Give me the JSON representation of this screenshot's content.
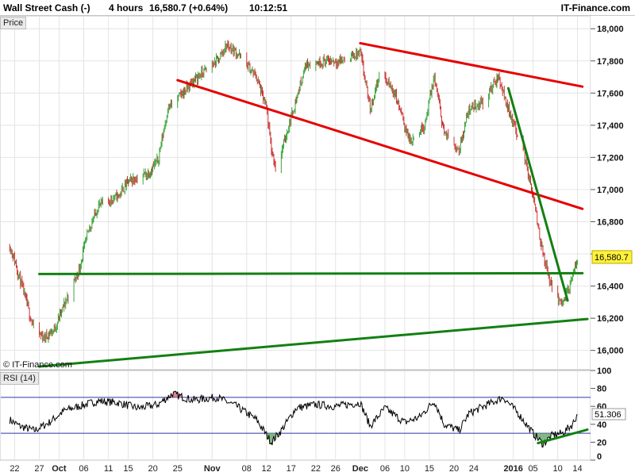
{
  "header": {
    "symbol": "Wall Street Cash (-)",
    "period": "4 hours",
    "price_change": "16,580.7 (+0.64%)",
    "time": "10:12:51",
    "site": "IT-Finance.com"
  },
  "price_panel": {
    "label": "Price",
    "copyright": "© IT-Finance.com"
  },
  "rsi_panel": {
    "label": "RSI (14)"
  },
  "colors": {
    "up": "#3aa43a",
    "down": "#cc3333",
    "resistance": "#e60000",
    "support": "#128012",
    "rsi_line": "#000000",
    "level_line": "#3333aa",
    "current_price_bg": "#fff23a"
  },
  "chart_data": [
    {
      "type": "candlestick",
      "title": "Wall Street Cash (-)",
      "interval": "4 hours",
      "ylim": [
        15880,
        18080
      ],
      "yticks": [
        16000,
        16200,
        16400,
        16600,
        16800,
        17000,
        17200,
        17400,
        17600,
        17800,
        18000
      ],
      "ytick_labels": [
        "16,000",
        "16,200",
        "16,400",
        "16,600",
        "16,800",
        "17,000",
        "17,200",
        "17,400",
        "17,600",
        "17,800",
        "18,000"
      ],
      "current_price": 16580.7,
      "current_price_label": "16,580.7",
      "price_path_anchors": [
        {
          "date": "2015-09-21",
          "close": 16650
        },
        {
          "date": "2015-09-22",
          "close": 16560
        },
        {
          "date": "2015-09-24",
          "close": 16340
        },
        {
          "date": "2015-09-26",
          "close": 16120
        },
        {
          "date": "2015-09-28",
          "close": 16080
        },
        {
          "date": "2015-09-30",
          "close": 16130
        },
        {
          "date": "2015-10-02",
          "close": 16280
        },
        {
          "date": "2015-10-05",
          "close": 16500
        },
        {
          "date": "2015-10-07",
          "close": 16750
        },
        {
          "date": "2015-10-09",
          "close": 16900
        },
        {
          "date": "2015-10-13",
          "close": 16960
        },
        {
          "date": "2015-10-15",
          "close": 17050
        },
        {
          "date": "2015-10-19",
          "close": 17100
        },
        {
          "date": "2015-10-21",
          "close": 17180
        },
        {
          "date": "2015-10-23",
          "close": 17500
        },
        {
          "date": "2015-10-26",
          "close": 17600
        },
        {
          "date": "2015-10-29",
          "close": 17700
        },
        {
          "date": "2015-11-02",
          "close": 17800
        },
        {
          "date": "2015-11-04",
          "close": 17900
        },
        {
          "date": "2015-11-06",
          "close": 17850
        },
        {
          "date": "2015-11-10",
          "close": 17700
        },
        {
          "date": "2015-11-12",
          "close": 17500
        },
        {
          "date": "2015-11-13",
          "close": 17250
        },
        {
          "date": "2015-11-14",
          "close": 17120
        },
        {
          "date": "2015-11-17",
          "close": 17450
        },
        {
          "date": "2015-11-20",
          "close": 17780
        },
        {
          "date": "2015-11-24",
          "close": 17800
        },
        {
          "date": "2015-11-27",
          "close": 17800
        },
        {
          "date": "2015-12-01",
          "close": 17850
        },
        {
          "date": "2015-12-03",
          "close": 17500
        },
        {
          "date": "2015-12-05",
          "close": 17730
        },
        {
          "date": "2015-12-08",
          "close": 17600
        },
        {
          "date": "2015-12-11",
          "close": 17300
        },
        {
          "date": "2015-12-14",
          "close": 17400
        },
        {
          "date": "2015-12-16",
          "close": 17700
        },
        {
          "date": "2015-12-18",
          "close": 17350
        },
        {
          "date": "2015-12-21",
          "close": 17250
        },
        {
          "date": "2015-12-23",
          "close": 17500
        },
        {
          "date": "2015-12-26",
          "close": 17550
        },
        {
          "date": "2015-12-29",
          "close": 17700
        },
        {
          "date": "2015-12-31",
          "close": 17500
        },
        {
          "date": "2016-01-03",
          "close": 17250
        },
        {
          "date": "2016-01-05",
          "close": 16950
        },
        {
          "date": "2016-01-07",
          "close": 16600
        },
        {
          "date": "2016-01-09",
          "close": 16350
        },
        {
          "date": "2016-01-11",
          "close": 16300
        },
        {
          "date": "2016-01-13",
          "close": 16450
        },
        {
          "date": "2016-01-14",
          "close": 16580.7
        }
      ],
      "trendlines": [
        {
          "name": "upper channel",
          "color": "red",
          "points": [
            [
              "2015-12-01",
              17910
            ],
            [
              "2016-01-15",
              17640
            ]
          ]
        },
        {
          "name": "lower channel",
          "color": "red",
          "points": [
            [
              "2015-10-25",
              17680
            ],
            [
              "2016-01-15",
              16880
            ]
          ]
        },
        {
          "name": "horizontal support",
          "color": "green",
          "points": [
            [
              "2015-09-27",
              16475
            ],
            [
              "2016-01-15",
              16480
            ]
          ]
        },
        {
          "name": "rising support",
          "color": "green",
          "points": [
            [
              "2015-09-27",
              15900
            ],
            [
              "2016-01-16",
              16195
            ]
          ]
        },
        {
          "name": "steep downtrend",
          "color": "green",
          "points": [
            [
              "2015-12-31",
              17630
            ],
            [
              "2016-01-12",
              16310
            ]
          ]
        }
      ],
      "x_tick_labels": [
        {
          "date": "2015-09-22",
          "label": "22"
        },
        {
          "date": "2015-09-27",
          "label": "27"
        },
        {
          "date": "2015-10-01",
          "label": "Oct",
          "bold": true
        },
        {
          "date": "2015-10-06",
          "label": "06"
        },
        {
          "date": "2015-10-11",
          "label": "11"
        },
        {
          "date": "2015-10-15",
          "label": "15"
        },
        {
          "date": "2015-10-20",
          "label": "20"
        },
        {
          "date": "2015-10-25",
          "label": "25"
        },
        {
          "date": "2015-11-01",
          "label": "Nov",
          "bold": true
        },
        {
          "date": "2015-11-08",
          "label": "08"
        },
        {
          "date": "2015-11-12",
          "label": "12"
        },
        {
          "date": "2015-11-17",
          "label": "17"
        },
        {
          "date": "2015-11-22",
          "label": "22"
        },
        {
          "date": "2015-11-26",
          "label": "26"
        },
        {
          "date": "2015-12-01",
          "label": "Dec",
          "bold": true
        },
        {
          "date": "2015-12-06",
          "label": "06"
        },
        {
          "date": "2015-12-10",
          "label": "10"
        },
        {
          "date": "2015-12-15",
          "label": "15"
        },
        {
          "date": "2015-12-20",
          "label": "20"
        },
        {
          "date": "2015-12-24",
          "label": "24"
        },
        {
          "date": "2016-01-01",
          "label": "2016",
          "bold": true
        },
        {
          "date": "2016-01-05",
          "label": "05"
        },
        {
          "date": "2016-01-10",
          "label": "10"
        },
        {
          "date": "2016-01-14",
          "label": "14"
        }
      ]
    },
    {
      "type": "line",
      "title": "RSI (14)",
      "ylim": [
        0,
        100
      ],
      "yticks": [
        0,
        20,
        40,
        60,
        80,
        100
      ],
      "ytick_labels": [
        "0",
        "20",
        "40",
        "60",
        "80",
        "100"
      ],
      "levels": [
        70,
        30
      ],
      "current_value": 51.306,
      "current_value_label": "51.306",
      "rsi_path_anchors": [
        {
          "date": "2015-09-21",
          "value": 45
        },
        {
          "date": "2015-09-23",
          "value": 38
        },
        {
          "date": "2015-09-26",
          "value": 33
        },
        {
          "date": "2015-09-29",
          "value": 42
        },
        {
          "date": "2015-10-02",
          "value": 55
        },
        {
          "date": "2015-10-05",
          "value": 60
        },
        {
          "date": "2015-10-09",
          "value": 66
        },
        {
          "date": "2015-10-13",
          "value": 64
        },
        {
          "date": "2015-10-17",
          "value": 58
        },
        {
          "date": "2015-10-21",
          "value": 62
        },
        {
          "date": "2015-10-24",
          "value": 74
        },
        {
          "date": "2015-10-28",
          "value": 67
        },
        {
          "date": "2015-11-02",
          "value": 70
        },
        {
          "date": "2015-11-06",
          "value": 60
        },
        {
          "date": "2015-11-10",
          "value": 45
        },
        {
          "date": "2015-11-13",
          "value": 20
        },
        {
          "date": "2015-11-15",
          "value": 33
        },
        {
          "date": "2015-11-18",
          "value": 58
        },
        {
          "date": "2015-11-22",
          "value": 62
        },
        {
          "date": "2015-11-26",
          "value": 60
        },
        {
          "date": "2015-12-01",
          "value": 64
        },
        {
          "date": "2015-12-03",
          "value": 38
        },
        {
          "date": "2015-12-06",
          "value": 58
        },
        {
          "date": "2015-12-10",
          "value": 42
        },
        {
          "date": "2015-12-13",
          "value": 48
        },
        {
          "date": "2015-12-16",
          "value": 66
        },
        {
          "date": "2015-12-18",
          "value": 40
        },
        {
          "date": "2015-12-21",
          "value": 33
        },
        {
          "date": "2015-12-23",
          "value": 52
        },
        {
          "date": "2015-12-26",
          "value": 60
        },
        {
          "date": "2015-12-30",
          "value": 70
        },
        {
          "date": "2016-01-02",
          "value": 52
        },
        {
          "date": "2016-01-05",
          "value": 30
        },
        {
          "date": "2016-01-07",
          "value": 18
        },
        {
          "date": "2016-01-09",
          "value": 28
        },
        {
          "date": "2016-01-11",
          "value": 30
        },
        {
          "date": "2016-01-13",
          "value": 40
        },
        {
          "date": "2016-01-14",
          "value": 51.3
        }
      ],
      "trendlines": [
        {
          "name": "RSI rising support",
          "color": "green",
          "points": [
            [
              "2016-01-06",
              19
            ],
            [
              "2016-01-16",
              34
            ]
          ]
        }
      ]
    }
  ]
}
